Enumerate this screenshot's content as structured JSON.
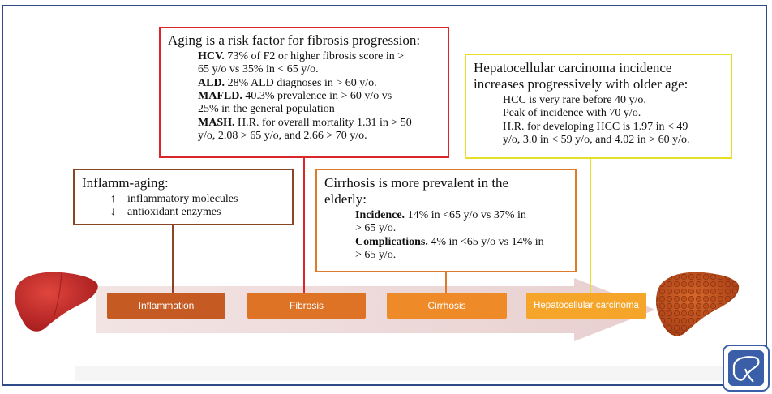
{
  "aging_box": {
    "title": "Aging is a risk factor for fibrosis progression:",
    "items": [
      {
        "label": "HCV.",
        "text": " 73% of F2 or higher fibrosis score in >"
      },
      {
        "label": "",
        "text": "65 y/o vs 35% in < 65 y/o."
      },
      {
        "label": "ALD.",
        "text": " 28% ALD diagnoses in > 60 y/o."
      },
      {
        "label": "MAFLD.",
        "text": " 40.3% prevalence in > 60 y/o vs"
      },
      {
        "label": "",
        "text": "25% in the general population"
      },
      {
        "label": "MASH.",
        "text": " H.R. for overall mortality 1.31 in > 50"
      },
      {
        "label": "",
        "text": "y/o, 2.08 > 65 y/o, and 2.66 > 70 y/o."
      }
    ]
  },
  "hcc_box": {
    "title_line1": "Hepatocellular carcinoma incidence",
    "title_line2": "increases progressively with older age:",
    "lines": [
      "HCC is very rare before 40 y/o.",
      "Peak of incidence with 70 y/o.",
      "H.R. for developing HCC is 1.97 in < 49",
      "y/o, 3.0 in < 59 y/o, and 4.02 in > 60 y/o."
    ]
  },
  "inflamm_box": {
    "title": "Inflamm-aging:",
    "rows": [
      {
        "arrow": "↑",
        "text": "inflammatory molecules"
      },
      {
        "arrow": "↓",
        "text": "antioxidant enzymes"
      }
    ]
  },
  "cirrhosis_box": {
    "title_line1": "Cirrhosis is more prevalent in the",
    "title_line2": "elderly:",
    "items": [
      {
        "label": "Incidence.",
        "text": " 14% in <65 y/o vs 37% in"
      },
      {
        "label": "",
        "text": "> 65 y/o."
      },
      {
        "label": "Complications.",
        "text": " 4% in <65 y/o vs 14% in"
      },
      {
        "label": "",
        "text": "> 65 y/o."
      }
    ]
  },
  "stages": {
    "inflammation": "Inflammation",
    "fibrosis": "Fibrosis",
    "cirrhosis": "Cirrhosis",
    "hcc": "Hepatocellular carcinoma"
  },
  "colors": {
    "frame": "#2f4a86",
    "aging_border": "#d9262a",
    "hcc_border": "#e5df29",
    "inflamm_border": "#8a4426",
    "cirrhosis_border": "#de7a2a"
  },
  "icons": {
    "left": "healthy-liver-icon",
    "right": "cirrhotic-liver-icon",
    "corner": "liver-logo-icon"
  }
}
